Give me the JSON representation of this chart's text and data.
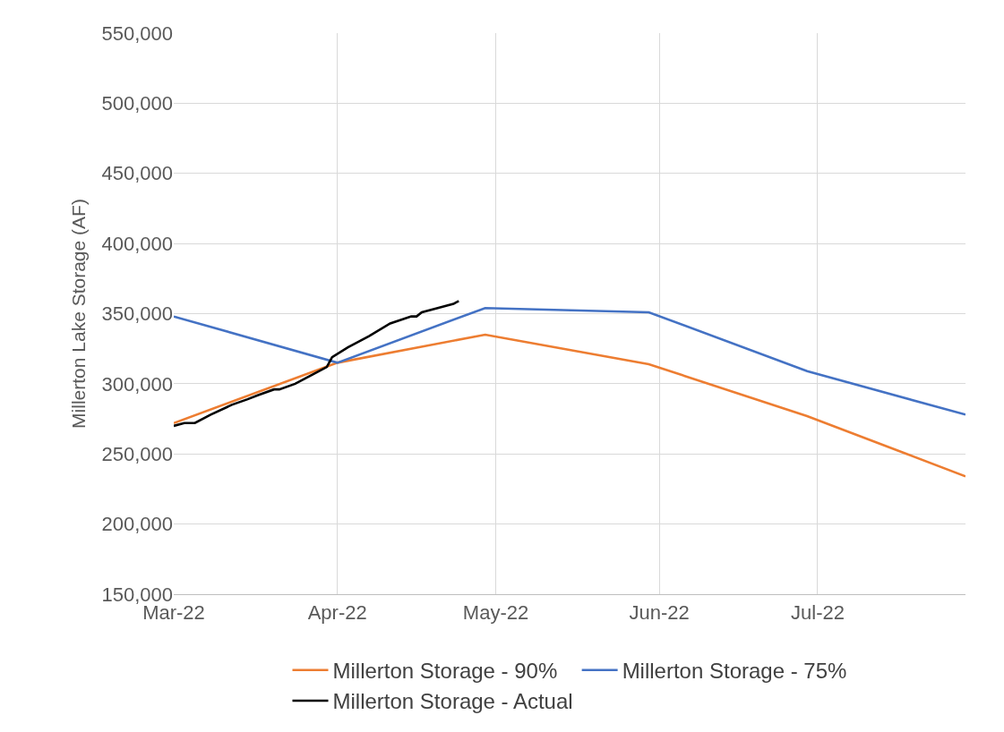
{
  "chart_data": {
    "type": "line",
    "ylabel": "Millerton Lake Storage (AF)",
    "xlim": [
      "2022-03-01",
      "2022-07-29"
    ],
    "xticks": [
      {
        "value": "2022-03-01",
        "label": "Mar-22"
      },
      {
        "value": "2022-04-01",
        "label": "Apr-22"
      },
      {
        "value": "2022-05-01",
        "label": "May-22"
      },
      {
        "value": "2022-06-01",
        "label": "Jun-22"
      },
      {
        "value": "2022-07-01",
        "label": "Jul-22"
      }
    ],
    "ylim": [
      150000,
      550000
    ],
    "yticks": [
      {
        "value": 150000,
        "label": "150,000"
      },
      {
        "value": 200000,
        "label": "200,000"
      },
      {
        "value": 250000,
        "label": "250,000"
      },
      {
        "value": 300000,
        "label": "300,000"
      },
      {
        "value": 350000,
        "label": "350,000"
      },
      {
        "value": 400000,
        "label": "400,000"
      },
      {
        "value": 450000,
        "label": "450,000"
      },
      {
        "value": 500000,
        "label": "500,000"
      },
      {
        "value": 550000,
        "label": "550,000"
      }
    ],
    "grid": true,
    "legend": "bottom",
    "marker": "none",
    "line_style": "solid",
    "series": [
      {
        "name": "Millerton Storage - 90%",
        "color": "#ed7d31",
        "x": [
          "2022-03-01",
          "2022-04-01",
          "2022-04-29",
          "2022-05-30",
          "2022-06-29",
          "2022-07-29"
        ],
        "values": [
          272000,
          315000,
          335000,
          314000,
          277000,
          234000
        ]
      },
      {
        "name": "Millerton Storage - 75%",
        "color": "#4472c4",
        "x": [
          "2022-03-01",
          "2022-04-01",
          "2022-04-29",
          "2022-05-30",
          "2022-06-29",
          "2022-07-29"
        ],
        "values": [
          348000,
          315000,
          354000,
          351000,
          309000,
          278000
        ]
      },
      {
        "name": "Millerton Storage - Actual",
        "color": "#000000",
        "x": [
          "2022-03-01",
          "2022-03-03",
          "2022-03-05",
          "2022-03-08",
          "2022-03-12",
          "2022-03-15",
          "2022-03-17",
          "2022-03-20",
          "2022-03-21",
          "2022-03-24",
          "2022-03-26",
          "2022-03-28",
          "2022-03-30",
          "2022-03-31",
          "2022-04-03",
          "2022-04-07",
          "2022-04-11",
          "2022-04-15",
          "2022-04-16",
          "2022-04-17",
          "2022-04-20",
          "2022-04-23",
          "2022-04-24"
        ],
        "values": [
          270000,
          272000,
          272000,
          278000,
          285000,
          289000,
          292000,
          296000,
          296000,
          300000,
          304000,
          308000,
          312000,
          319000,
          326000,
          334000,
          343000,
          348000,
          348000,
          351000,
          354000,
          357000,
          359000
        ]
      }
    ]
  }
}
